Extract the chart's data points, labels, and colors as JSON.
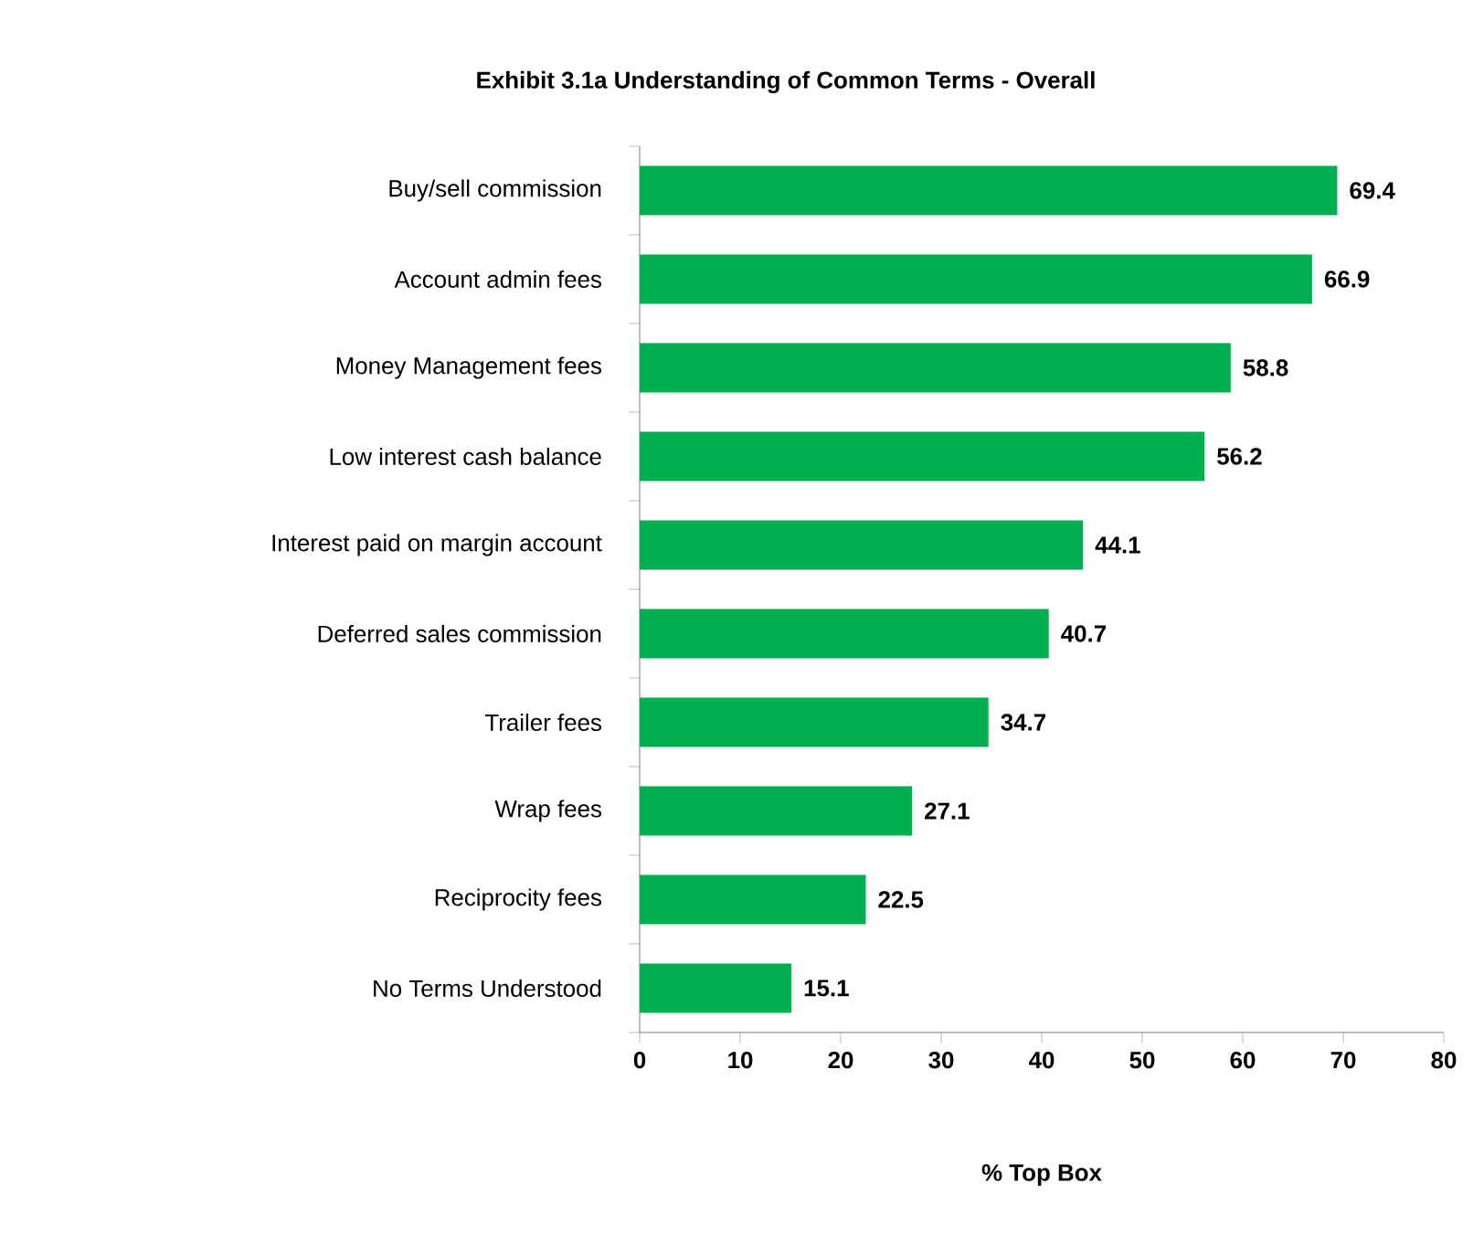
{
  "chart_data": {
    "type": "bar",
    "orientation": "horizontal",
    "title": "Exhibit 3.1a  Understanding of Common Terms - Overall",
    "xlabel": "% Top Box",
    "categories": [
      "Buy/sell commission",
      "Account admin fees",
      "Money Management  fees",
      "Low interest cash balance",
      "Interest paid on margin account",
      "Deferred sales commission",
      "Trailer fees",
      "Wrap fees",
      "Reciprocity fees",
      "No Terms Understood"
    ],
    "values": [
      69.4,
      66.9,
      58.8,
      56.2,
      44.1,
      40.7,
      34.7,
      27.1,
      22.5,
      15.1
    ],
    "color": "#00b050",
    "xlim": [
      0,
      80
    ],
    "xticks": [
      0,
      10,
      20,
      30,
      40,
      50,
      60,
      70,
      80
    ],
    "data_labels": true,
    "grid": false
  }
}
